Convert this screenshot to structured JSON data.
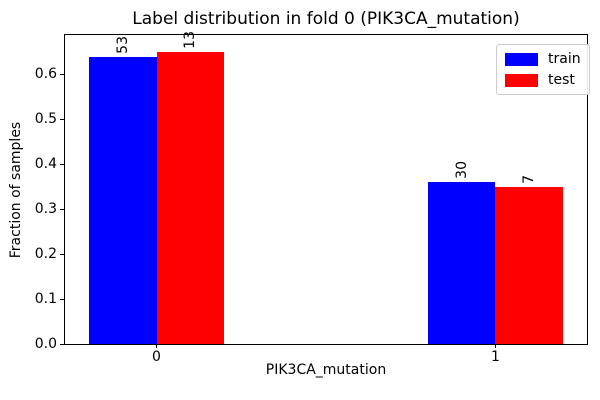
{
  "chart_data": {
    "type": "bar",
    "title": "Label distribution in fold 0 (PIK3CA_mutation)",
    "xlabel": "PIK3CA_mutation",
    "ylabel": "Fraction of samples",
    "categories": [
      "0",
      "1"
    ],
    "x": [
      0,
      1
    ],
    "series": [
      {
        "name": "train",
        "color": "#0000ff",
        "values": [
          0.639,
          0.361
        ],
        "bar_labels": [
          "53",
          "30"
        ]
      },
      {
        "name": "test",
        "color": "#ff0000",
        "values": [
          0.65,
          0.35
        ],
        "bar_labels": [
          "13",
          "7"
        ]
      }
    ],
    "bar_width": 0.2,
    "xlim": [
      -0.27,
      1.27
    ],
    "ylim": [
      0,
      0.687
    ],
    "yticks": [
      0.0,
      0.1,
      0.2,
      0.3,
      0.4,
      0.5,
      0.6
    ],
    "ytick_labels": [
      "0.0",
      "0.1",
      "0.2",
      "0.3",
      "0.4",
      "0.5",
      "0.6"
    ],
    "legend_position": "upper right",
    "grid": false
  }
}
